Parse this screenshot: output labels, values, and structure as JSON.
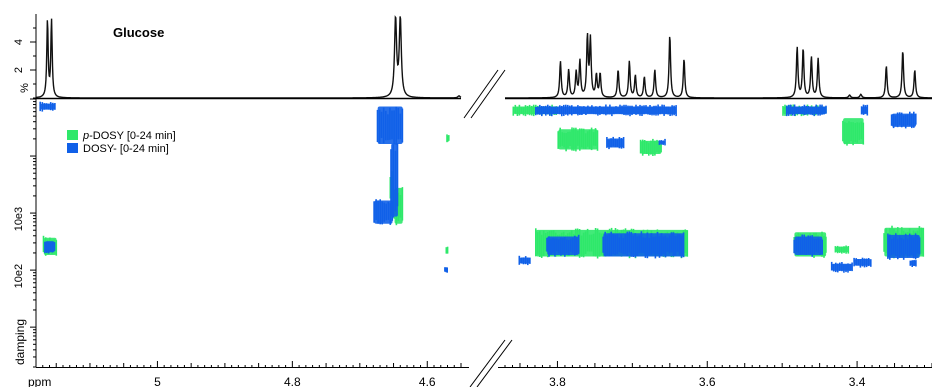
{
  "chart_data": [
    {
      "type": "line",
      "panel": "1D spectrum",
      "title": "Glucose",
      "ylabel": "%",
      "yticks": [
        "2",
        "4"
      ],
      "ylim": [
        0,
        5.3
      ],
      "x_reversed": true,
      "x_segments": [
        [
          5.18,
          4.55
        ],
        [
          3.87,
          3.3
        ]
      ],
      "peaks": [
        {
          "ppm": 5.163,
          "height": 5.5,
          "width": 0.0012
        },
        {
          "ppm": 5.157,
          "height": 5.5,
          "width": 0.0012
        },
        {
          "ppm": 4.647,
          "height": 5.6,
          "width": 0.0018
        },
        {
          "ppm": 4.64,
          "height": 5.6,
          "width": 0.0018
        },
        {
          "ppm": 4.553,
          "height": 0.15,
          "width": 0.002
        },
        {
          "ppm": 3.796,
          "height": 2.6,
          "width": 0.0012
        },
        {
          "ppm": 3.785,
          "height": 2.0,
          "width": 0.0012
        },
        {
          "ppm": 3.775,
          "height": 1.8,
          "width": 0.0012
        },
        {
          "ppm": 3.77,
          "height": 2.6,
          "width": 0.0012
        },
        {
          "ppm": 3.76,
          "height": 4.3,
          "width": 0.0012
        },
        {
          "ppm": 3.756,
          "height": 4.1,
          "width": 0.0012
        },
        {
          "ppm": 3.748,
          "height": 1.6,
          "width": 0.0012
        },
        {
          "ppm": 3.743,
          "height": 1.7,
          "width": 0.0012
        },
        {
          "ppm": 3.719,
          "height": 2.0,
          "width": 0.0012
        },
        {
          "ppm": 3.704,
          "height": 2.6,
          "width": 0.0012
        },
        {
          "ppm": 3.696,
          "height": 1.6,
          "width": 0.0012
        },
        {
          "ppm": 3.684,
          "height": 1.5,
          "width": 0.0012
        },
        {
          "ppm": 3.67,
          "height": 2.0,
          "width": 0.0012
        },
        {
          "ppm": 3.65,
          "height": 4.5,
          "width": 0.0012
        },
        {
          "ppm": 3.631,
          "height": 2.8,
          "width": 0.0012
        },
        {
          "ppm": 3.48,
          "height": 3.6,
          "width": 0.0012
        },
        {
          "ppm": 3.472,
          "height": 3.5,
          "width": 0.0012
        },
        {
          "ppm": 3.461,
          "height": 2.9,
          "width": 0.0012
        },
        {
          "ppm": 3.452,
          "height": 2.8,
          "width": 0.0012
        },
        {
          "ppm": 3.41,
          "height": 0.2,
          "width": 0.0015
        },
        {
          "ppm": 3.395,
          "height": 0.25,
          "width": 0.0015
        },
        {
          "ppm": 3.361,
          "height": 2.3,
          "width": 0.0012
        },
        {
          "ppm": 3.339,
          "height": 3.4,
          "width": 0.0012
        },
        {
          "ppm": 3.323,
          "height": 2.0,
          "width": 0.0012
        }
      ]
    },
    {
      "type": "heatmap",
      "panel": "2D DOSY",
      "xlabel": "ppm",
      "ylabel": "damping",
      "x_reversed": true,
      "x_segments": [
        [
          5.18,
          4.55
        ],
        [
          3.87,
          3.3
        ]
      ],
      "x_ticks": [
        "5",
        "4.8",
        "4.6",
        "3.8",
        "3.6",
        "3.4"
      ],
      "y_scale": "log",
      "y_ticks": [
        "10e3",
        "10e2"
      ],
      "ylim": [
        20,
        1000000
      ],
      "legend": {
        "placement": "upper-left",
        "entries": [
          {
            "prefix": "p",
            "text": "-DOSY [0-24 min]",
            "color": "#2ee86a"
          },
          {
            "prefix": "",
            "text": "DOSY- [0-24 min]",
            "color": "#1060e8"
          }
        ]
      },
      "series": [
        {
          "name": "p-DOSY [0-24 min]",
          "color": "#2ee86a",
          "blobs": [
            {
              "ppm": [
                5.17,
                5.148
              ],
              "d": [
                4000,
                1700
              ]
            },
            {
              "ppm": [
                4.65,
                4.635
              ],
              "d": [
                30000,
                6000
              ]
            },
            {
              "ppm": [
                4.656,
                4.65
              ],
              "d": [
                60000,
                14000
              ]
            },
            {
              "ppm": [
                4.573,
                4.57
              ],
              "d": [
                2600,
                1900
              ]
            },
            {
              "ppm": [
                4.572,
                4.568
              ],
              "d": [
                250000,
                170000
              ]
            },
            {
              "ppm": [
                3.83,
                3.625
              ],
              "d": [
                5500,
                1600
              ]
            },
            {
              "ppm": [
                3.8,
                3.745
              ],
              "d": [
                320000,
                120000
              ]
            },
            {
              "ppm": [
                3.69,
                3.66
              ],
              "d": [
                200000,
                100000
              ]
            },
            {
              "ppm": [
                3.485,
                3.44
              ],
              "d": [
                5000,
                1600
              ]
            },
            {
              "ppm": [
                3.43,
                3.41
              ],
              "d": [
                2800,
                1900
              ]
            },
            {
              "ppm": [
                3.365,
                3.31
              ],
              "d": [
                6000,
                1600
              ]
            },
            {
              "ppm": [
                3.42,
                3.39
              ],
              "d": [
                500000,
                150000
              ]
            },
            {
              "ppm": [
                3.86,
                3.8
              ],
              "d": [
                800000,
                500000
              ]
            },
            {
              "ppm": [
                3.5,
                3.44
              ],
              "d": [
                800000,
                500000
              ]
            }
          ]
        },
        {
          "name": "DOSY- [0-24 min]",
          "color": "#1060e8",
          "blobs": [
            {
              "ppm": [
                5.168,
                5.151
              ],
              "d": [
                3500,
                1900
              ]
            },
            {
              "ppm": [
                5.175,
                5.15
              ],
              "d": [
                900000,
                600000
              ]
            },
            {
              "ppm": [
                4.675,
                4.635
              ],
              "d": [
                800000,
                150000
              ]
            },
            {
              "ppm": [
                4.655,
                4.642
              ],
              "d": [
                180000,
                8000
              ]
            },
            {
              "ppm": [
                4.68,
                4.65
              ],
              "d": [
                18000,
                6000
              ]
            },
            {
              "ppm": [
                4.575,
                4.57
              ],
              "d": [
                1200,
                900
              ]
            },
            {
              "ppm": [
                3.852,
                3.835
              ],
              "d": [
                1800,
                1200
              ]
            },
            {
              "ppm": [
                3.815,
                3.77
              ],
              "d": [
                4200,
                1700
              ]
            },
            {
              "ppm": [
                3.74,
                3.63
              ],
              "d": [
                4800,
                1600
              ]
            },
            {
              "ppm": [
                3.83,
                3.64
              ],
              "d": [
                800000,
                500000
              ]
            },
            {
              "ppm": [
                3.735,
                3.71
              ],
              "d": [
                220000,
                130000
              ]
            },
            {
              "ppm": [
                3.665,
                3.655
              ],
              "d": [
                200000,
                150000
              ]
            },
            {
              "ppm": [
                3.485,
                3.445
              ],
              "d": [
                4200,
                1700
              ]
            },
            {
              "ppm": [
                3.495,
                3.44
              ],
              "d": [
                800000,
                500000
              ]
            },
            {
              "ppm": [
                3.435,
                3.405
              ],
              "d": [
                1400,
                900
              ]
            },
            {
              "ppm": [
                3.405,
                3.38
              ],
              "d": [
                1700,
                1100
              ]
            },
            {
              "ppm": [
                3.36,
                3.315
              ],
              "d": [
                4500,
                1500
              ]
            },
            {
              "ppm": [
                3.33,
                3.32
              ],
              "d": [
                1600,
                1100
              ]
            },
            {
              "ppm": [
                3.355,
                3.32
              ],
              "d": [
                600000,
                300000
              ]
            },
            {
              "ppm": [
                3.395,
                3.385
              ],
              "d": [
                800000,
                500000
              ]
            }
          ]
        }
      ]
    }
  ]
}
